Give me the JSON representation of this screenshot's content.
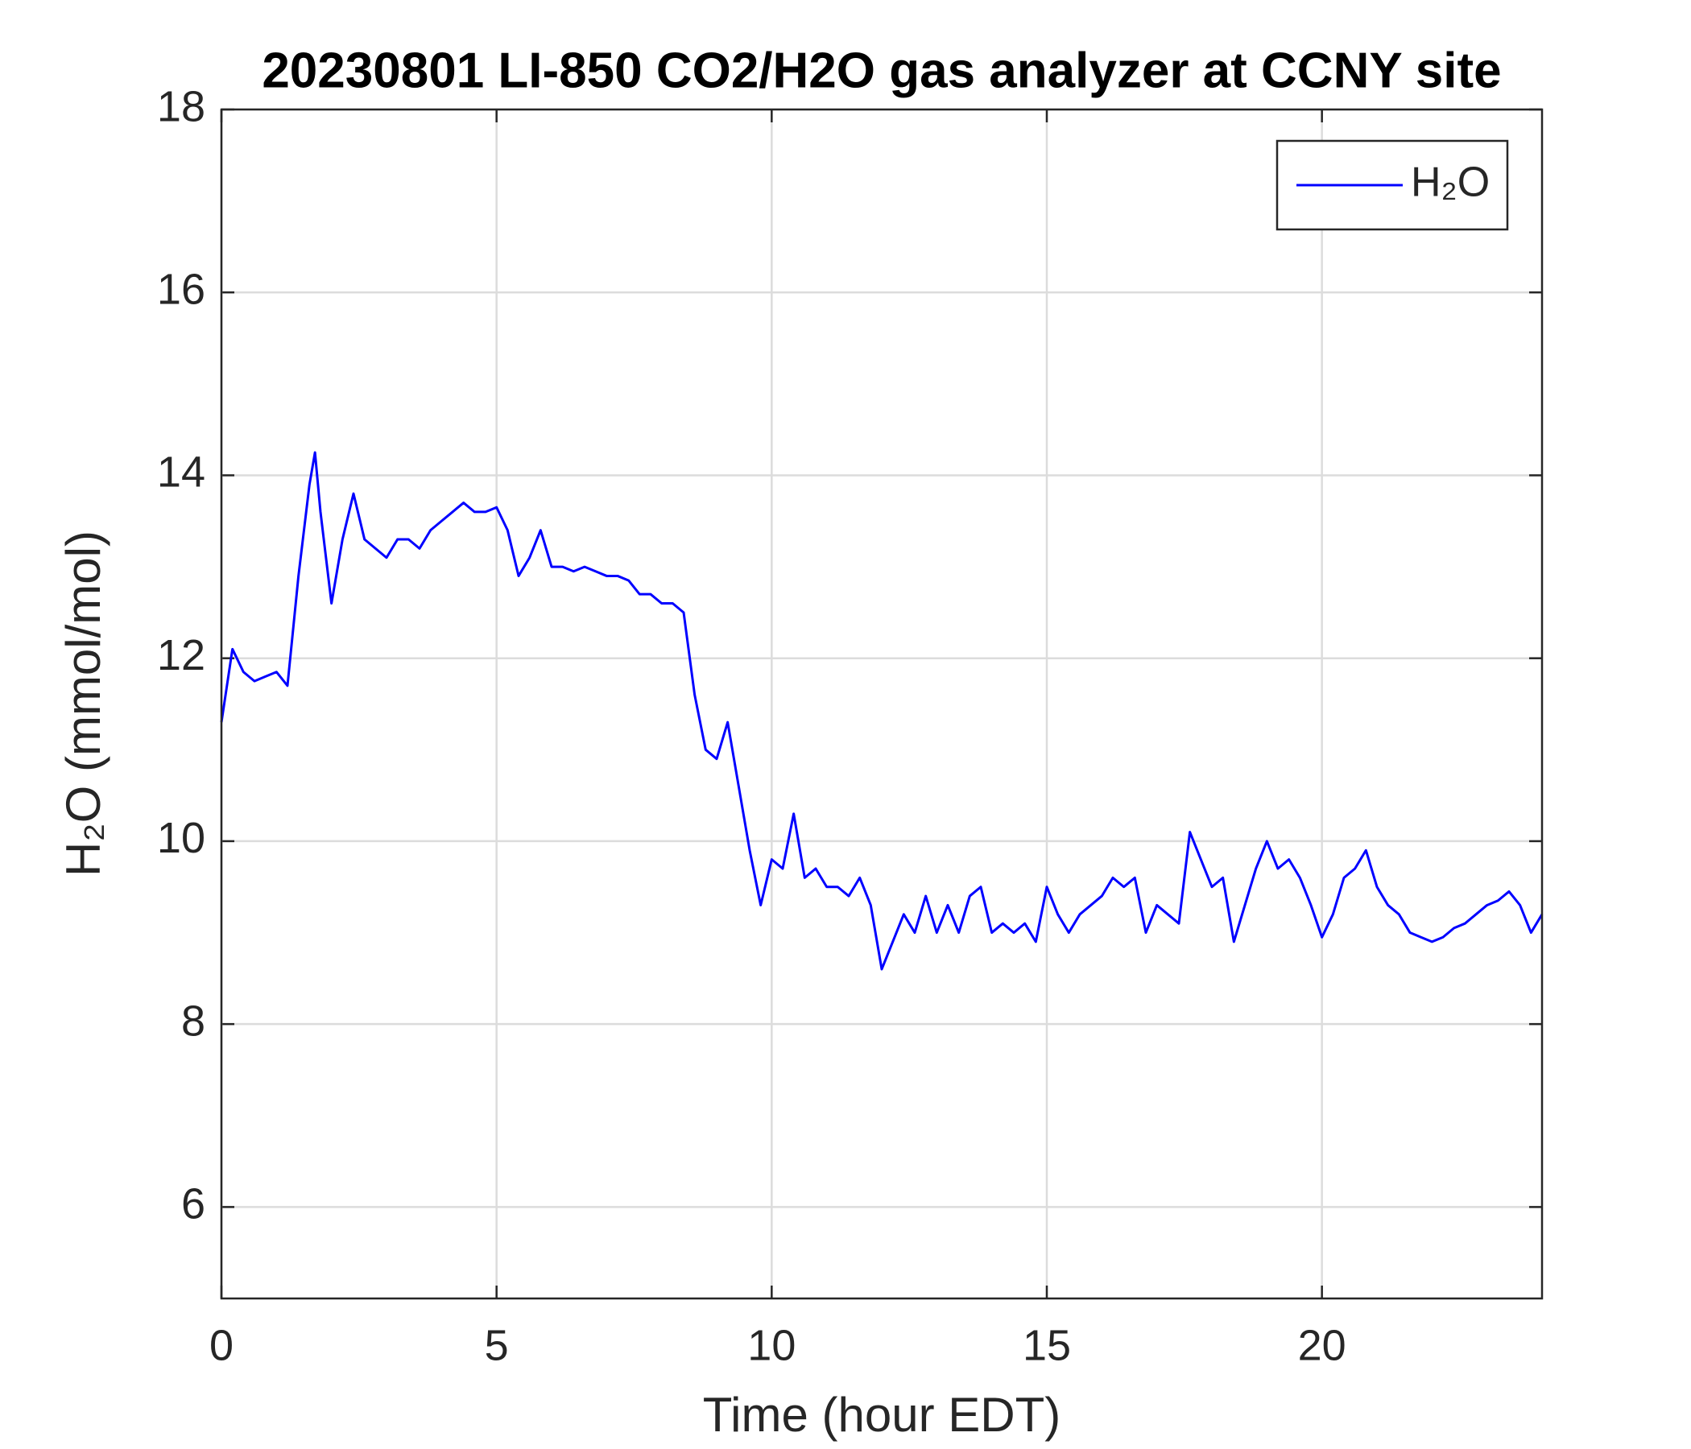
{
  "chart_data": {
    "type": "line",
    "title": "20230801 LI-850 CO2/H2O gas analyzer at CCNY site",
    "x_label": "Time (hour EDT)",
    "y_label": "H₂O (mmol/mol)",
    "x": [
      0,
      0.2,
      0.4,
      0.6,
      0.8,
      1.0,
      1.2,
      1.4,
      1.6,
      1.7,
      1.8,
      2.0,
      2.2,
      2.4,
      2.6,
      2.8,
      3.0,
      3.2,
      3.4,
      3.6,
      3.8,
      4.0,
      4.2,
      4.4,
      4.6,
      4.8,
      5.0,
      5.2,
      5.4,
      5.6,
      5.8,
      6.0,
      6.2,
      6.4,
      6.6,
      6.8,
      7.0,
      7.2,
      7.4,
      7.6,
      7.8,
      8.0,
      8.2,
      8.4,
      8.6,
      8.8,
      9.0,
      9.2,
      9.4,
      9.6,
      9.8,
      10.0,
      10.2,
      10.4,
      10.6,
      10.8,
      11.0,
      11.2,
      11.4,
      11.6,
      11.8,
      12.0,
      12.2,
      12.4,
      12.6,
      12.8,
      13.0,
      13.2,
      13.4,
      13.6,
      13.8,
      14.0,
      14.2,
      14.4,
      14.6,
      14.8,
      15.0,
      15.2,
      15.4,
      15.6,
      15.8,
      16.0,
      16.2,
      16.4,
      16.6,
      16.8,
      17.0,
      17.2,
      17.4,
      17.6,
      17.8,
      18.0,
      18.2,
      18.4,
      18.6,
      18.8,
      19.0,
      19.2,
      19.4,
      19.6,
      19.8,
      20.0,
      20.2,
      20.4,
      20.6,
      20.8,
      21.0,
      21.2,
      21.4,
      21.6,
      21.8,
      22.0,
      22.2,
      22.4,
      22.6,
      22.8,
      23.0,
      23.2,
      23.4,
      23.6,
      23.8,
      24.0
    ],
    "series": [
      {
        "name": "H₂O",
        "color": "#0000ff",
        "values": [
          11.3,
          12.1,
          11.85,
          11.75,
          11.8,
          11.85,
          11.7,
          12.9,
          13.9,
          14.25,
          13.6,
          12.6,
          13.3,
          13.8,
          13.3,
          13.2,
          13.1,
          13.3,
          13.3,
          13.2,
          13.4,
          13.5,
          13.6,
          13.7,
          13.6,
          13.6,
          13.65,
          13.4,
          12.9,
          13.1,
          13.4,
          13.0,
          13.0,
          12.95,
          13.0,
          12.95,
          12.9,
          12.9,
          12.85,
          12.7,
          12.7,
          12.6,
          12.6,
          12.5,
          11.6,
          11.0,
          10.9,
          11.3,
          10.6,
          9.9,
          9.3,
          9.8,
          9.7,
          10.3,
          9.6,
          9.7,
          9.5,
          9.5,
          9.4,
          9.6,
          9.3,
          8.6,
          8.9,
          9.2,
          9.0,
          9.4,
          9.0,
          9.3,
          9.0,
          9.4,
          9.5,
          9.0,
          9.1,
          9.0,
          9.1,
          8.9,
          9.5,
          9.2,
          9.0,
          9.2,
          9.3,
          9.4,
          9.6,
          9.5,
          9.6,
          9.0,
          9.3,
          9.2,
          9.1,
          10.1,
          9.8,
          9.5,
          9.6,
          8.9,
          9.3,
          9.7,
          10.0,
          9.7,
          9.8,
          9.6,
          9.3,
          8.95,
          9.2,
          9.6,
          9.7,
          9.9,
          9.5,
          9.3,
          9.2,
          9.0,
          8.95,
          8.9,
          8.95,
          9.05,
          9.1,
          9.2,
          9.3,
          9.35,
          9.45,
          9.3,
          9.0,
          9.2
        ]
      }
    ],
    "xlim": [
      0,
      24
    ],
    "xticks": [
      0,
      5,
      10,
      15,
      20
    ],
    "ylim": [
      5,
      18
    ],
    "yticks": [
      6,
      8,
      10,
      12,
      14,
      16,
      18
    ],
    "grid": true,
    "legend": "upper right"
  }
}
